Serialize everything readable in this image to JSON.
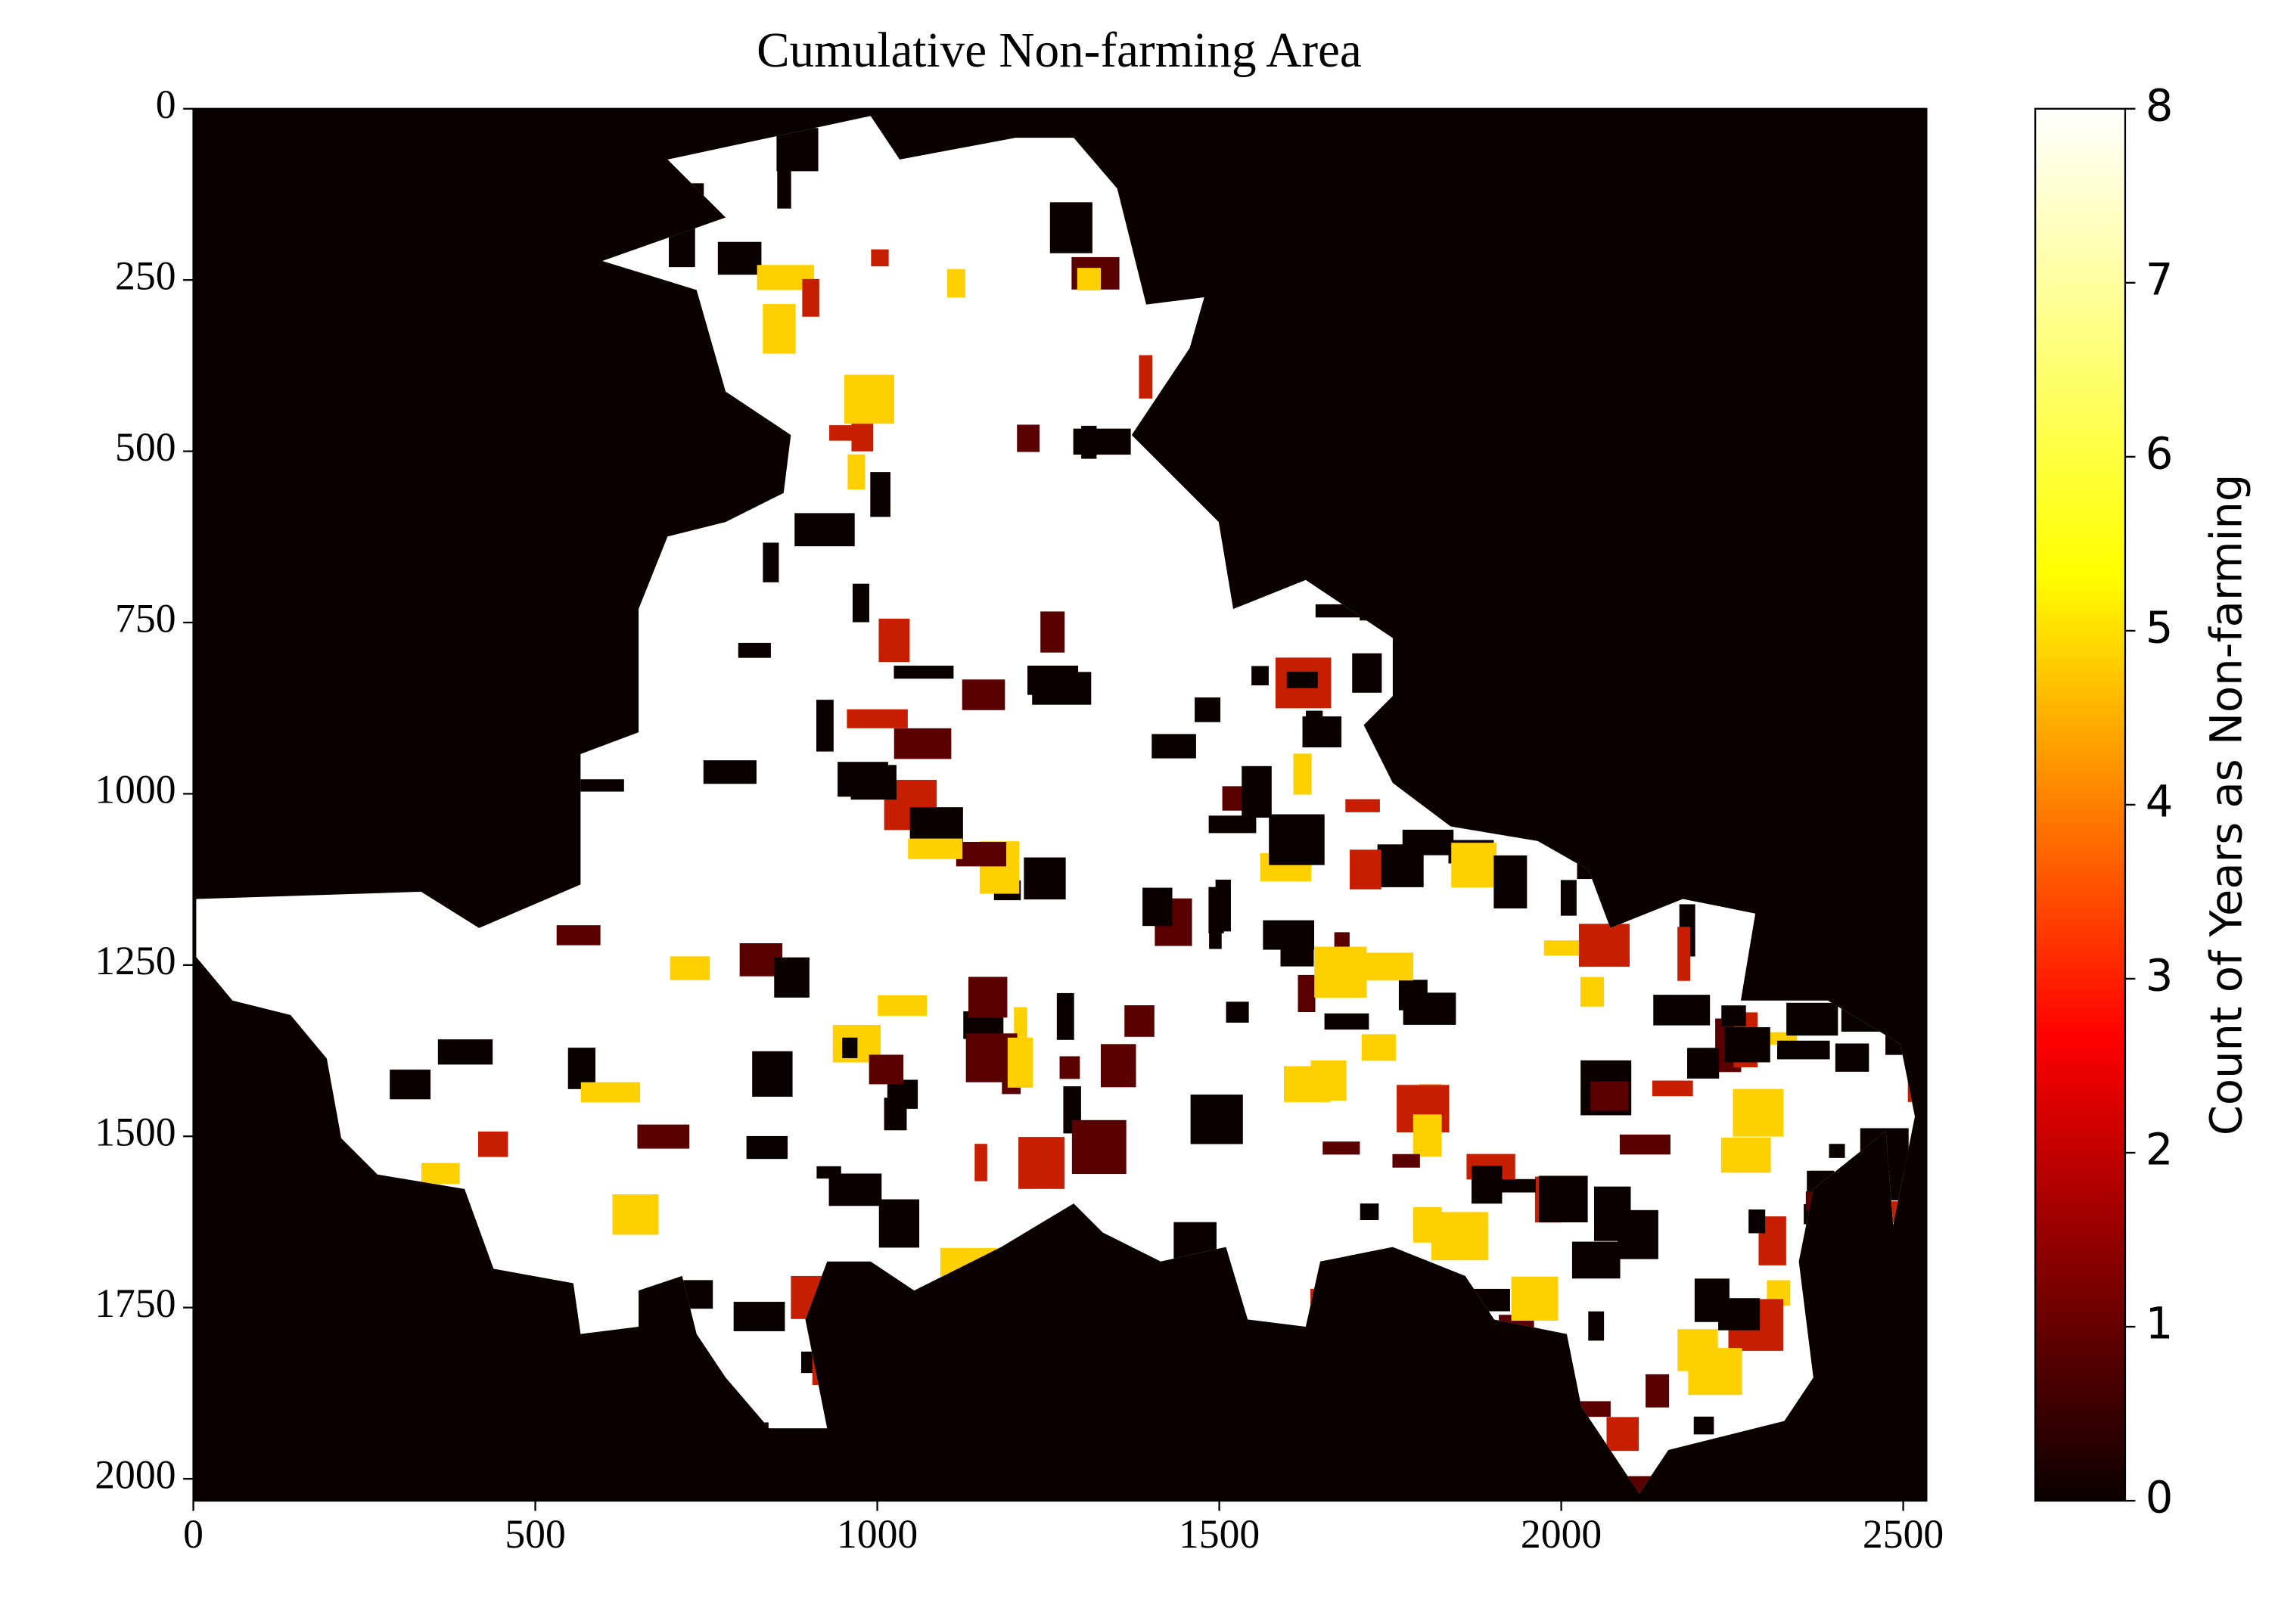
{
  "chart_data": {
    "type": "heatmap-image",
    "title": "Cumulative Non-farming Area",
    "xlim": [
      0,
      2534
    ],
    "xticks": [
      0,
      500,
      1000,
      1500,
      2000,
      2500
    ],
    "ylim": [
      2032,
      0
    ],
    "yticks": [
      0,
      250,
      500,
      750,
      1000,
      1250,
      1500,
      1750,
      2000
    ],
    "colorbar": {
      "label": "Count of Years as Non-farming",
      "lim": [
        0,
        8
      ],
      "ticks": [
        0,
        1,
        2,
        3,
        4,
        5,
        6,
        7,
        8
      ],
      "colormap": [
        "#0b0000",
        "#ff0000",
        "#ffff00",
        "#ffffff"
      ]
    }
  }
}
